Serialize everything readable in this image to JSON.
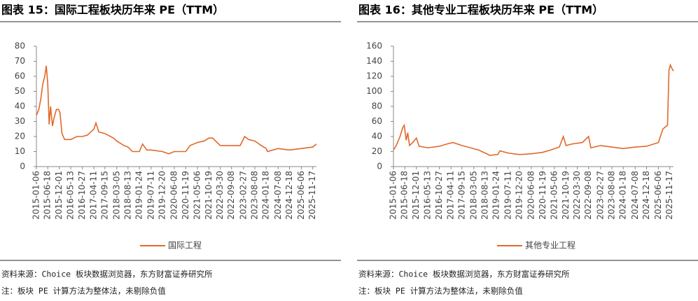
{
  "chart_data": [
    {
      "type": "line",
      "title": "图表 15：国际工程板块历年来 PE（TTM）",
      "x": [
        "2015-01-06",
        "2015-02-10",
        "2015-03-10",
        "2015-04-08",
        "2015-05-06",
        "2015-05-28",
        "2015-06-18",
        "2015-07-08",
        "2015-07-28",
        "2015-08-25",
        "2015-09-15",
        "2015-10-20",
        "2015-11-20",
        "2015-12-10",
        "2016-01-08",
        "2016-02-15",
        "2016-05-13",
        "2016-08-10",
        "2016-10-27",
        "2017-01-10",
        "2017-04-11",
        "2017-05-10",
        "2017-06-20",
        "2017-09-15",
        "2018-01-15",
        "2018-03-05",
        "2018-06-15",
        "2018-08-13",
        "2018-10-15",
        "2019-01-24",
        "2019-03-10",
        "2019-05-10",
        "2019-07-11",
        "2019-12-20",
        "2020-03-20",
        "2020-06-08",
        "2020-11-19",
        "2021-01-20",
        "2021-05-06",
        "2021-08-10",
        "2021-10-19",
        "2021-12-10",
        "2022-03-30",
        "2022-09-08",
        "2023-01-10",
        "2023-03-15",
        "2023-05-10",
        "2023-08-08",
        "2023-11-10",
        "2024-01-18",
        "2024-02-05",
        "2024-07-08",
        "2024-12-18",
        "2025-06-06",
        "2025-11-17",
        "2026-01-09"
      ],
      "series": [
        {
          "name": "国际工程",
          "color": "#e0692a",
          "values": [
            34,
            38,
            45,
            55,
            60,
            67,
            55,
            28,
            40,
            27,
            32,
            38,
            38,
            36,
            22,
            18,
            18,
            20,
            20,
            21,
            25,
            29,
            23,
            22,
            19,
            17,
            14,
            13,
            10,
            10,
            15,
            11,
            11,
            10,
            8.5,
            10,
            10,
            14,
            16,
            17,
            19,
            19,
            14,
            14,
            14,
            20,
            18,
            17,
            14,
            12,
            10,
            12,
            11,
            12,
            13,
            15
          ]
        }
      ],
      "xlim": [
        "2015-01-06",
        "2026-01-09"
      ],
      "xticks": [
        "2015-01-06",
        "2015-06-18",
        "2015-12-01",
        "2016-05-13",
        "2016-10-27",
        "2017-04-11",
        "2017-09-15",
        "2018-03-05",
        "2018-08-13",
        "2019-01-24",
        "2019-07-11",
        "2019-12-20",
        "2020-06-08",
        "2020-11-19",
        "2021-05-06",
        "2021-10-19",
        "2022-03-30",
        "2022-09-08",
        "2023-02-27",
        "2023-08-08",
        "2024-01-18",
        "2024-07-08",
        "2024-12-18",
        "2025-06-06",
        "2025-11-17"
      ],
      "ylim": [
        0,
        80
      ],
      "yticks": [
        0,
        10,
        20,
        30,
        40,
        50,
        60,
        70,
        80
      ],
      "grid": false,
      "source": "资料来源：Choice 板块数据浏览器，东方财富证券研究所",
      "note": "注：板块 PE 计算方法为整体法，未剔除负值"
    },
    {
      "type": "line",
      "title": "图表 16：其他专业工程板块历年来 PE（TTM）",
      "x": [
        "2015-01-06",
        "2015-02-15",
        "2015-04-10",
        "2015-05-20",
        "2015-06-10",
        "2015-07-08",
        "2015-07-30",
        "2015-08-25",
        "2015-10-10",
        "2015-12-01",
        "2016-01-10",
        "2016-05-13",
        "2016-10-27",
        "2017-02-10",
        "2017-05-10",
        "2017-09-15",
        "2018-01-15",
        "2018-05-15",
        "2018-08-13",
        "2018-10-20",
        "2019-02-10",
        "2019-03-15",
        "2019-07-11",
        "2019-12-20",
        "2020-06-08",
        "2020-11-19",
        "2021-03-10",
        "2021-07-15",
        "2021-09-10",
        "2021-10-19",
        "2022-01-10",
        "2022-06-10",
        "2022-09-08",
        "2022-10-10",
        "2023-02-27",
        "2023-08-08",
        "2024-01-18",
        "2024-07-08",
        "2024-12-18",
        "2025-06-06",
        "2025-08-10",
        "2025-10-15",
        "2025-11-05",
        "2025-11-25",
        "2025-12-20",
        "2026-01-09"
      ],
      "series": [
        {
          "name": "其他专业工程",
          "color": "#e0692a",
          "values": [
            22,
            28,
            40,
            52,
            55,
            35,
            45,
            28,
            32,
            38,
            27,
            25,
            27,
            30,
            32,
            28,
            25,
            22,
            18,
            15,
            16,
            21,
            18,
            16,
            17,
            19,
            22,
            26,
            40,
            28,
            30,
            32,
            40,
            25,
            28,
            26,
            24,
            26,
            27,
            32,
            50,
            55,
            128,
            135,
            130,
            127
          ]
        }
      ],
      "xlim": [
        "2015-01-06",
        "2026-01-09"
      ],
      "xticks": [
        "2015-01-06",
        "2015-06-18",
        "2015-12-01",
        "2016-05-13",
        "2016-10-27",
        "2017-04-11",
        "2017-09-15",
        "2018-03-05",
        "2018-08-13",
        "2019-01-24",
        "2019-07-11",
        "2019-12-20",
        "2020-06-08",
        "2020-11-19",
        "2021-05-06",
        "2021-10-19",
        "2022-03-30",
        "2022-09-08",
        "2023-02-27",
        "2023-08-08",
        "2024-01-18",
        "2024-07-08",
        "2024-12-18",
        "2025-06-06",
        "2025-11-17"
      ],
      "ylim": [
        0,
        160
      ],
      "yticks": [
        0,
        20,
        40,
        60,
        80,
        100,
        120,
        140,
        160
      ],
      "grid": false,
      "source": "资料来源：Choice 板块数据浏览器，东方财富证券研究所",
      "note": "注：板块 PE 计算方法为整体法，未剔除负值"
    }
  ]
}
